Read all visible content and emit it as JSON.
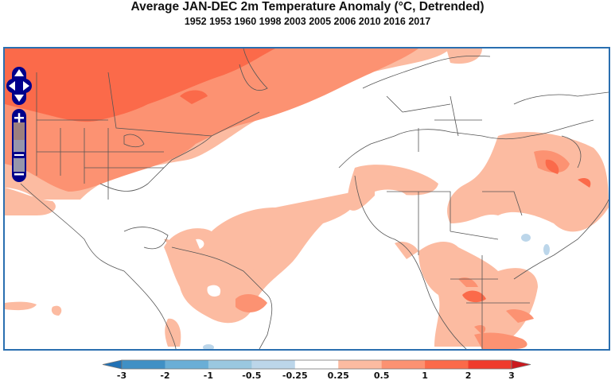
{
  "title": "Average JAN-DEC 2m Temperature Anomaly (°C, Detrended)",
  "subtitle": "1952 1953 1960 1998 2003 2005 2006 2010 2016 2017",
  "map": {
    "region": "North Atlantic, Americas, Europe, Africa",
    "controls": {
      "pan_up": "pan-up",
      "pan_down": "pan-down",
      "pan_left": "pan-left",
      "pan_right": "pan-right",
      "zoom_in": "+",
      "zoom_out": "−"
    }
  },
  "colorbar": {
    "ticks": [
      "-3",
      "-2",
      "-1",
      "-0.5",
      "-0.25",
      "0.25",
      "0.5",
      "1",
      "2",
      "3"
    ],
    "colors": [
      "#4090c5",
      "#6aaed6",
      "#9ac8e0",
      "#bcd6ea",
      "#ffffff",
      "#fcbba1",
      "#fc9272",
      "#fb6a4a",
      "#ef3b2c"
    ],
    "under_color": "#2171b5",
    "over_color": "#cb181d"
  },
  "palette": {
    "frame": "#2a6fb0",
    "nav_control": "#00008b",
    "anomaly_025_05": "#fcbba1",
    "anomaly_05_1": "#fc9272",
    "anomaly_1_2": "#fb6a4a",
    "anomaly_neg": "#bcd6ea",
    "border_line": "#555555"
  }
}
